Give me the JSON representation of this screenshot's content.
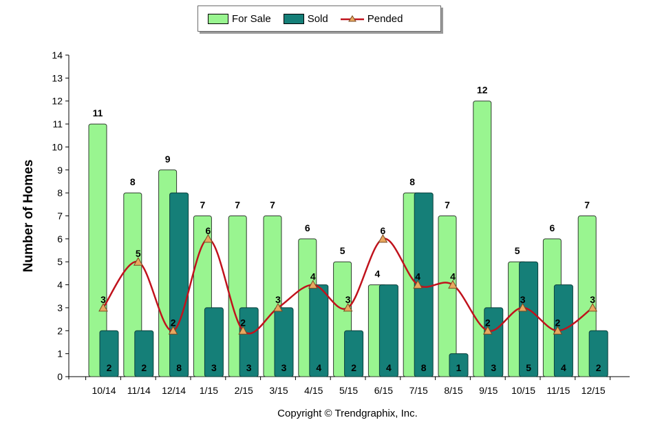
{
  "legend": {
    "for_sale_label": "For Sale",
    "sold_label": "Sold",
    "pended_label": "Pended"
  },
  "copyright": "Copyright © Trendgraphix, Inc.",
  "colors": {
    "for_sale": "#99f590",
    "sold": "#157f78",
    "pended": "#c0121c",
    "marker": "#e8a860"
  },
  "chart_data": {
    "type": "bar",
    "ylabel": "Number of Homes",
    "xlabel": "",
    "ylim": [
      0,
      14
    ],
    "yticks": [
      0,
      1,
      2,
      3,
      4,
      5,
      6,
      7,
      8,
      9,
      10,
      11,
      12,
      13,
      14
    ],
    "categories": [
      "10/14",
      "11/14",
      "12/14",
      "1/15",
      "2/15",
      "3/15",
      "4/15",
      "5/15",
      "6/15",
      "7/15",
      "8/15",
      "9/15",
      "10/15",
      "11/15",
      "12/15"
    ],
    "series": [
      {
        "name": "For Sale",
        "kind": "bar",
        "values": [
          11,
          8,
          9,
          7,
          7,
          7,
          6,
          5,
          4,
          8,
          7,
          12,
          5,
          6,
          7
        ]
      },
      {
        "name": "Sold",
        "kind": "bar",
        "values": [
          2,
          2,
          8,
          3,
          3,
          3,
          4,
          2,
          4,
          8,
          1,
          3,
          5,
          4,
          2
        ]
      },
      {
        "name": "Pended",
        "kind": "line",
        "values": [
          3,
          5,
          2,
          6,
          2,
          3,
          4,
          3,
          6,
          4,
          4,
          2,
          3,
          2,
          3
        ]
      }
    ]
  }
}
